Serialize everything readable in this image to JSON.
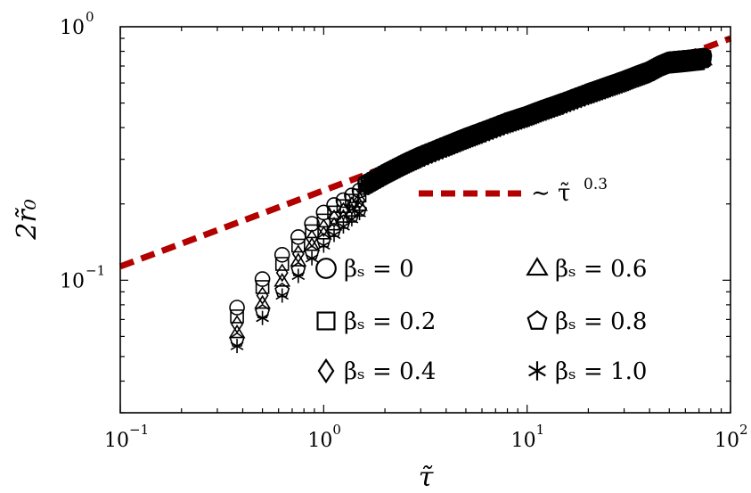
{
  "chart_data": {
    "type": "scatter",
    "title": "",
    "xlabel": "τ̃",
    "ylabel": "2r̃₀",
    "xscale": "log",
    "yscale": "log",
    "xlim": [
      0.1,
      100
    ],
    "ylim": [
      0.03,
      1
    ],
    "grid": false,
    "legend_position": "bottom-center",
    "x_ticks": [
      {
        "value": 0.1,
        "base": "10",
        "exp": "−1"
      },
      {
        "value": 1,
        "base": "10",
        "exp": "0"
      },
      {
        "value": 10,
        "base": "10",
        "exp": "1"
      },
      {
        "value": 100,
        "base": "10",
        "exp": "2"
      }
    ],
    "y_ticks": [
      {
        "value": 0.1,
        "base": "10",
        "exp": "−1"
      },
      {
        "value": 1,
        "base": "10",
        "exp": "0"
      }
    ],
    "series": [
      {
        "name": "β_s = 0",
        "marker": "circle",
        "x": [
          0.375,
          0.5,
          0.625,
          0.75,
          0.875,
          1.0,
          1.125,
          1.25,
          1.375,
          1.5
        ],
        "y": [
          0.078,
          0.101,
          0.126,
          0.148,
          0.167,
          0.185,
          0.198,
          0.207,
          0.216,
          0.226
        ]
      },
      {
        "name": "β_s = 0.2",
        "marker": "square",
        "x": [
          0.375,
          0.5,
          0.625,
          0.75,
          0.875,
          1.0,
          1.125,
          1.25,
          1.375,
          1.5
        ],
        "y": [
          0.072,
          0.094,
          0.116,
          0.137,
          0.156,
          0.172,
          0.185,
          0.196,
          0.206,
          0.216
        ]
      },
      {
        "name": "β_s = 0.4",
        "marker": "diamond",
        "x": [
          0.375,
          0.5,
          0.625,
          0.75,
          0.875,
          1.0,
          1.125,
          1.25,
          1.375,
          1.5
        ],
        "y": [
          0.067,
          0.087,
          0.107,
          0.127,
          0.146,
          0.161,
          0.175,
          0.187,
          0.197,
          0.206
        ]
      },
      {
        "name": "β_s = 0.6",
        "marker": "triangle",
        "x": [
          0.375,
          0.5,
          0.625,
          0.75,
          0.875,
          1.0,
          1.125,
          1.25,
          1.375,
          1.5
        ],
        "y": [
          0.062,
          0.081,
          0.099,
          0.119,
          0.137,
          0.152,
          0.165,
          0.177,
          0.187,
          0.197
        ]
      },
      {
        "name": "β_s = 0.8",
        "marker": "pentagon",
        "x": [
          0.375,
          0.5,
          0.625,
          0.75,
          0.875,
          1.0,
          1.125,
          1.25,
          1.375,
          1.5
        ],
        "y": [
          0.058,
          0.075,
          0.091,
          0.11,
          0.128,
          0.143,
          0.157,
          0.169,
          0.179,
          0.189
        ]
      },
      {
        "name": "β_s = 1.0",
        "marker": "asterisk",
        "x": [
          0.375,
          0.5,
          0.625,
          0.75,
          0.875,
          1.0,
          1.125,
          1.25,
          1.375,
          1.5
        ],
        "y": [
          0.055,
          0.071,
          0.087,
          0.104,
          0.122,
          0.137,
          0.151,
          0.163,
          0.174,
          0.184
        ]
      }
    ],
    "dense_trend": {
      "x": [
        1.6,
        2,
        2.5,
        3,
        4,
        5,
        6,
        8,
        10,
        12,
        15,
        20,
        25,
        30,
        35,
        40,
        45,
        50,
        55,
        60,
        65,
        70,
        75
      ],
      "y": [
        0.235,
        0.26,
        0.285,
        0.305,
        0.335,
        0.36,
        0.38,
        0.415,
        0.44,
        0.465,
        0.495,
        0.54,
        0.575,
        0.605,
        0.635,
        0.66,
        0.695,
        0.72,
        0.725,
        0.73,
        0.735,
        0.74,
        0.745
      ]
    },
    "reference_line": {
      "label": "∼ τ̃",
      "exponent_label": "0.3",
      "exponent": 0.3,
      "x_range": [
        0.1,
        100
      ],
      "y_at_x_100": 0.9,
      "color": "#b30000"
    }
  }
}
